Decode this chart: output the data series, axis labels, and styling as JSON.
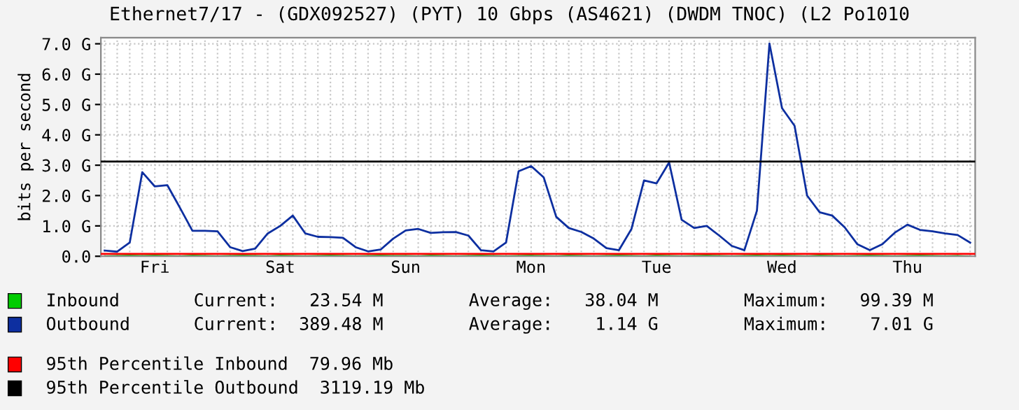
{
  "chart_data": {
    "type": "line",
    "title": "Ethernet7/17 - (GDX092527) (PYT) 10 Gbps (AS4621) (DWDM TNOC) (L2 Po1010",
    "ylabel": "bits per second",
    "categories": [
      null,
      null,
      null,
      null,
      "Fri",
      null,
      null,
      null,
      null,
      null,
      null,
      null,
      null,
      null,
      "Sat",
      null,
      null,
      null,
      null,
      null,
      null,
      null,
      null,
      null,
      "Sun",
      null,
      null,
      null,
      null,
      null,
      null,
      null,
      null,
      null,
      "Mon",
      null,
      null,
      null,
      null,
      null,
      null,
      null,
      null,
      null,
      "Tue",
      null,
      null,
      null,
      null,
      null,
      null,
      null,
      null,
      null,
      "Wed",
      null,
      null,
      null,
      null,
      null,
      null,
      null,
      null,
      null,
      "Thu",
      null,
      null,
      null,
      null,
      null
    ],
    "ylim": [
      0,
      7.2
    ],
    "yticks": [
      {
        "value": 0,
        "label": "0.0"
      },
      {
        "value": 1,
        "label": "1.0 G"
      },
      {
        "value": 2,
        "label": "2.0 G"
      },
      {
        "value": 3,
        "label": "3.0 G"
      },
      {
        "value": 4,
        "label": "4.0 G"
      },
      {
        "value": 5,
        "label": "5.0 G"
      },
      {
        "value": 6,
        "label": "6.0 G"
      },
      {
        "value": 7,
        "label": "7.0 G"
      }
    ],
    "grid": true,
    "line_style": "solid",
    "legend": "bottom",
    "series": [
      {
        "name": "Inbound",
        "type": "area",
        "color": "#00cc00",
        "values": [
          0.03,
          0.04,
          0.05,
          0.04,
          0.05,
          0.04,
          0.03,
          0.05,
          0.04,
          0.03,
          0.04,
          0.05,
          0.04,
          0.03,
          0.05,
          0.04,
          0.03,
          0.04,
          0.05,
          0.04,
          0.03,
          0.04,
          0.05,
          0.04,
          0.04,
          0.03,
          0.05,
          0.04,
          0.03,
          0.04,
          0.05,
          0.04,
          0.03,
          0.04,
          0.05,
          0.04,
          0.03,
          0.05,
          0.04,
          0.03,
          0.04,
          0.05,
          0.04,
          0.03,
          0.05,
          0.04,
          0.03,
          0.04,
          0.05,
          0.04,
          0.03,
          0.04,
          0.05,
          0.04,
          0.05,
          0.04,
          0.03,
          0.05,
          0.04,
          0.03,
          0.04,
          0.05,
          0.04,
          0.03,
          0.04,
          0.05,
          0.04,
          0.03,
          0.04,
          0.02
        ]
      },
      {
        "name": "Outbound",
        "color": "#0d2fa0",
        "values": [
          0.19,
          0.15,
          0.45,
          2.77,
          2.3,
          2.34,
          1.6,
          0.84,
          0.84,
          0.82,
          0.3,
          0.17,
          0.25,
          0.75,
          1.0,
          1.34,
          0.75,
          0.64,
          0.63,
          0.61,
          0.3,
          0.16,
          0.22,
          0.58,
          0.85,
          0.9,
          0.77,
          0.79,
          0.8,
          0.68,
          0.2,
          0.16,
          0.45,
          2.8,
          2.97,
          2.6,
          1.3,
          0.93,
          0.8,
          0.58,
          0.27,
          0.2,
          0.9,
          2.5,
          2.4,
          3.09,
          1.2,
          0.93,
          1.0,
          0.68,
          0.34,
          0.2,
          1.5,
          7.01,
          4.88,
          4.3,
          2.0,
          1.45,
          1.34,
          0.95,
          0.4,
          0.2,
          0.4,
          0.78,
          1.04,
          0.87,
          0.82,
          0.75,
          0.7,
          0.45
        ]
      }
    ],
    "ref_lines": [
      {
        "axis": "y",
        "value": 0.07996,
        "label": "95th Percentile Inbound  79.96 Mb",
        "color": "#ff0000"
      },
      {
        "axis": "y",
        "value": 3.11919,
        "label": "95th Percentile Outbound  3119.19 Mb",
        "color": "#000000"
      }
    ],
    "annotations": [
      "Current:   23.54 M",
      "Average:   38.04 M",
      "Maximum:   99.39 M",
      "Current:  389.48 M",
      "Average:    1.14 G",
      "Maximum:    7.01 G"
    ]
  }
}
